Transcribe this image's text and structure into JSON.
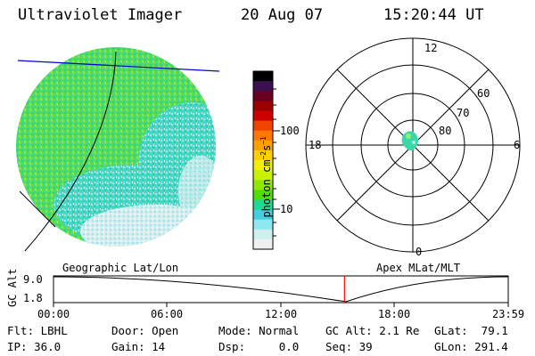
{
  "header": {
    "instrument": "Ultraviolet Imager",
    "date": "20 Aug 07",
    "time": "15:20:44 UT"
  },
  "colorbar": {
    "unit_label": "photon cm",
    "unit_exp1": "−2",
    "unit_mid": "s",
    "unit_exp2": "−1",
    "tick_100": "100",
    "tick_10": "10",
    "colors": [
      "#000000",
      "#3a1050",
      "#6a0020",
      "#9a0000",
      "#cc0000",
      "#ee4400",
      "#ff7700",
      "#ffa000",
      "#ffd000",
      "#f0f000",
      "#c8f000",
      "#90e800",
      "#50e000",
      "#20d890",
      "#40d0e0",
      "#90e8f0",
      "#d0f0f0",
      "#f0f0f0"
    ]
  },
  "polar_plot": {
    "mlt_12": "12",
    "mlt_18": "18",
    "mlt_6": "6",
    "mlt_0": "0",
    "lat_60": "60",
    "lat_70": "70",
    "lat_80": "80"
  },
  "left_panel": {
    "label": "Geographic Lat/Lon"
  },
  "right_panel": {
    "label": "Apex MLat/MLT"
  },
  "orbit_strip": {
    "ylabel": "GC Alt",
    "y_top": "9.0",
    "y_bottom": "1.8",
    "x_ticks": [
      "00:00",
      "06:00",
      "12:00",
      "18:00",
      "23:59"
    ],
    "current_marker_time": "15:20:44",
    "marker_color": "#ff0000"
  },
  "info": {
    "flt": "Flt: LBHL",
    "ip": "IP: 36.0",
    "door": "Door: Open",
    "gain": "Gain: 14",
    "mode": "Mode: Normal",
    "dsp": "Dsp:     0.0",
    "gcalt": "GC Alt: 2.1 Re",
    "seq": "Seq: 39",
    "glat": "GLat:  79.1",
    "glon": "GLon: 291.4"
  }
}
